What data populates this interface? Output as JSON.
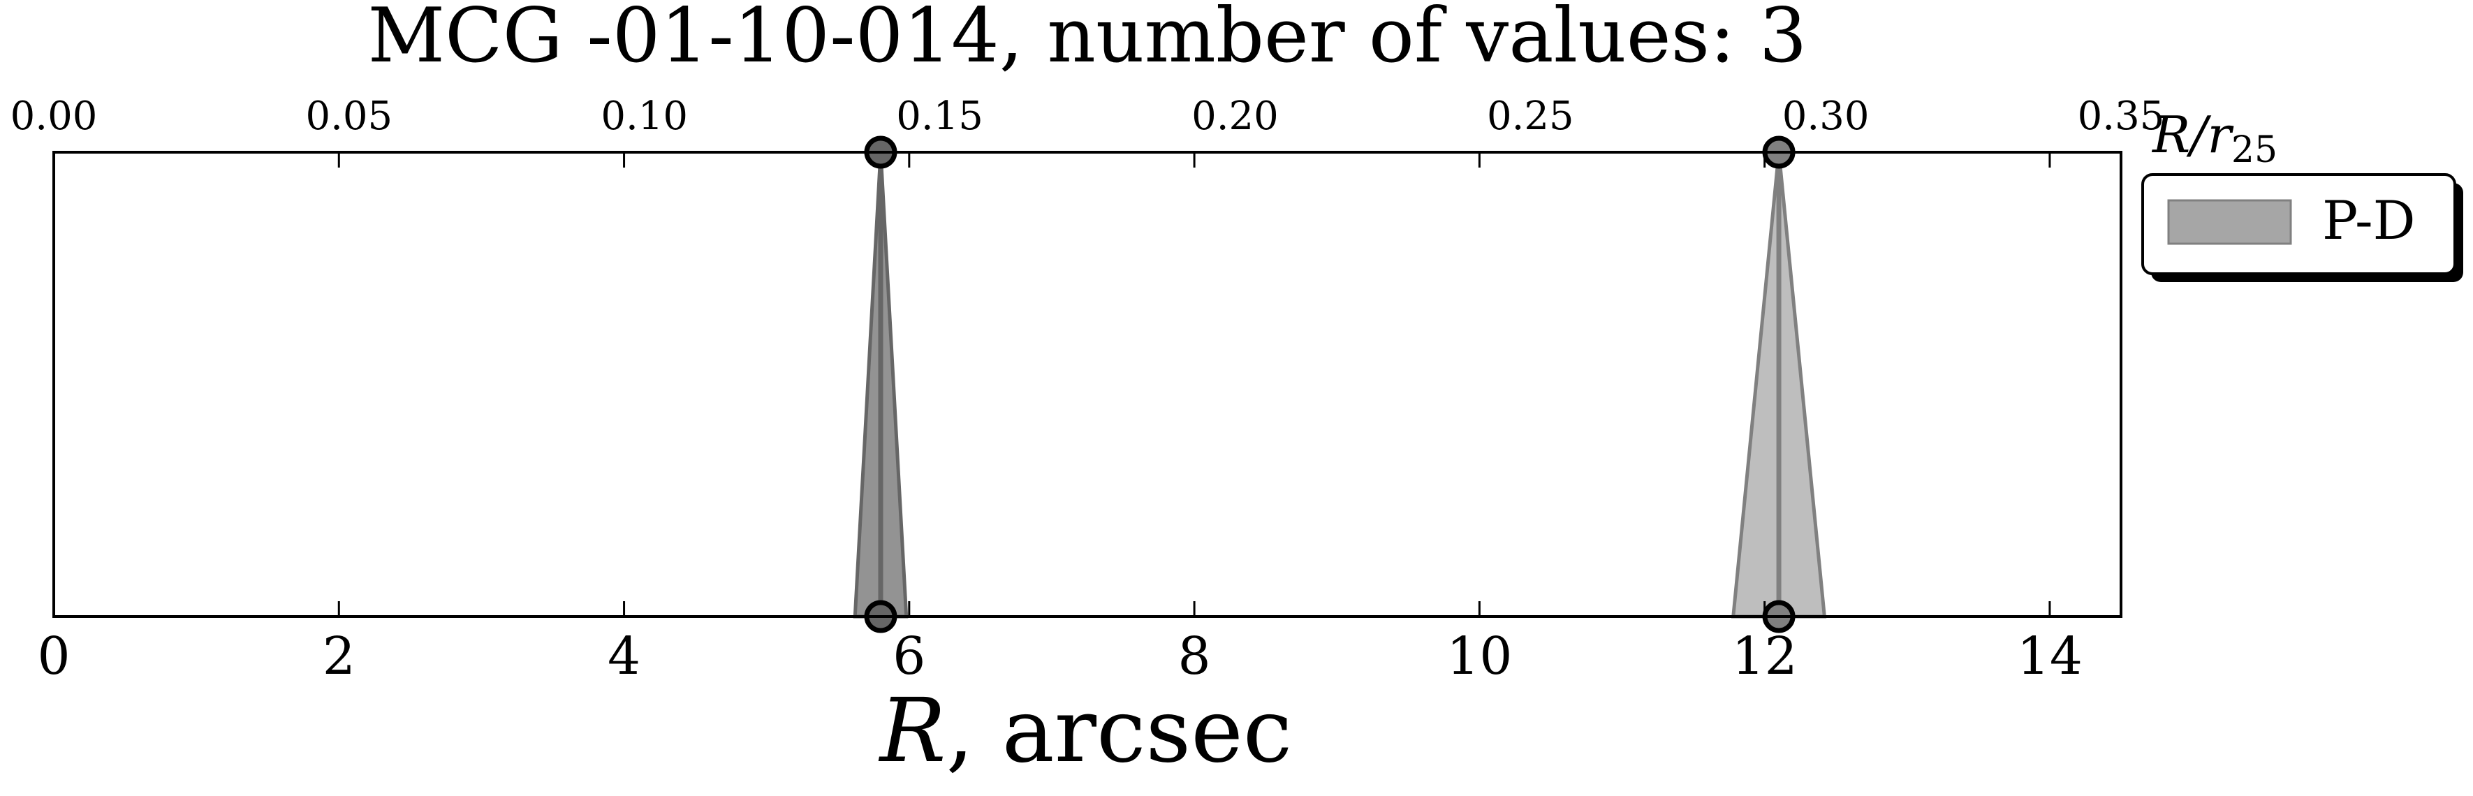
{
  "chart_data": {
    "type": "area",
    "title": "MCG -01-10-014, number of values: 3",
    "xlabel_main": "R",
    "xlabel_rest": ", arcsec",
    "x_ticks": [
      0,
      2,
      4,
      6,
      8,
      10,
      12,
      14
    ],
    "xlim": [
      0,
      14.5
    ],
    "top_axis_label_main": "R/r",
    "top_axis_label_sub": "25",
    "top_ticks": [
      "0.00",
      "0.05",
      "0.10",
      "0.15",
      "0.20",
      "0.25",
      "0.30",
      "0.35"
    ],
    "top_xlim": [
      0,
      0.35
    ],
    "grid": false,
    "legend": {
      "position": "outside-right-top",
      "entries": [
        {
          "label": "P-D",
          "color": "#a6a6a6"
        }
      ]
    },
    "series": [
      {
        "name": "P-D",
        "peaks": [
          {
            "x": 5.8,
            "half_width": 0.18,
            "fill": "#808080",
            "line": "#666666"
          },
          {
            "x": 12.1,
            "half_width": 0.32,
            "fill": "#b3b3b3",
            "line": "#808080"
          }
        ]
      }
    ]
  }
}
